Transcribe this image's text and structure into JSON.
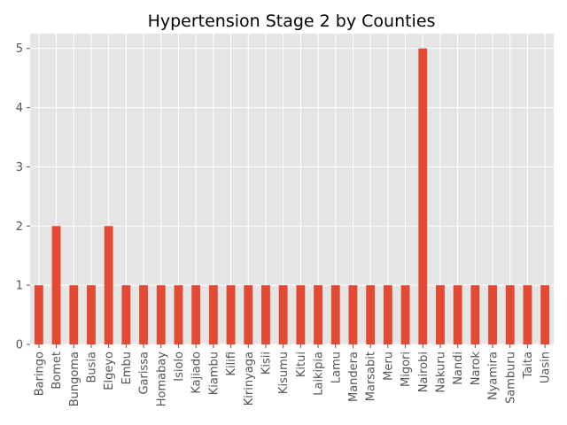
{
  "chart_data": {
    "type": "bar",
    "title": "Hypertension Stage 2 by Counties",
    "xlabel": "",
    "ylabel": "",
    "categories": [
      "Baringo",
      "Bomet",
      "Bungoma",
      "Busia",
      "Elgeyo",
      "Embu",
      "Garissa",
      "Homabay",
      "Isiolo",
      "Kajiado",
      "Kiambu",
      "Kilifi",
      "Kirinyaga",
      "Kisii",
      "Kisumu",
      "Kitui",
      "Laikipia",
      "Lamu",
      "Mandera",
      "Marsabit",
      "Meru",
      "Migori",
      "Nairobi",
      "Nakuru",
      "Nandi",
      "Narok",
      "Nyamira",
      "Samburu",
      "Taita",
      "Uasin"
    ],
    "values": [
      1,
      2,
      1,
      1,
      2,
      1,
      1,
      1,
      1,
      1,
      1,
      1,
      1,
      1,
      1,
      1,
      1,
      1,
      1,
      1,
      1,
      1,
      5,
      1,
      1,
      1,
      1,
      1,
      1,
      1
    ],
    "ylim": [
      0,
      5.25
    ],
    "yticks": [
      0,
      1,
      2,
      3,
      4,
      5
    ],
    "grid": true,
    "legend": "none",
    "bar_color": "#E24A33",
    "background_color": "#E5E5E5",
    "grid_color": "#FFFFFF"
  }
}
